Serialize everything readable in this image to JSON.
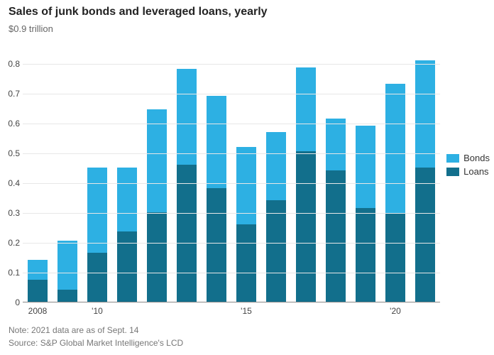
{
  "title": "Sales of junk bonds and leveraged loans, yearly",
  "subtitle": "$0.9 trillion",
  "note": "Note: 2021 data are as of Sept. 14",
  "source": "Source: S&P Global Market Intelligence's LCD",
  "legend": {
    "bonds": "Bonds",
    "loans": "Loans"
  },
  "chart": {
    "type": "stacked-bar",
    "background_color": "#ffffff",
    "grid_color": "#e7e7e7",
    "axis_color": "#888888",
    "text_color": "#444444",
    "title_fontsize": 16,
    "label_fontsize": 12,
    "ylim": [
      0,
      0.9
    ],
    "ytick_step": 0.1,
    "ytick_labels": [
      "0",
      "0.1",
      "0.2",
      "0.3",
      "0.4",
      "0.5",
      "0.6",
      "0.7",
      "0.8"
    ],
    "series_colors": {
      "loans": "#126f8c",
      "bonds": "#2db0e3"
    },
    "bar_width_ratio": 0.66,
    "years": [
      2008,
      2009,
      2010,
      2011,
      2012,
      2013,
      2014,
      2015,
      2016,
      2017,
      2018,
      2019,
      2020,
      2021
    ],
    "loans": [
      0.075,
      0.04,
      0.165,
      0.235,
      0.3,
      0.46,
      0.38,
      0.26,
      0.34,
      0.505,
      0.44,
      0.315,
      0.295,
      0.45
    ],
    "bonds": [
      0.065,
      0.165,
      0.285,
      0.215,
      0.345,
      0.32,
      0.31,
      0.26,
      0.23,
      0.28,
      0.175,
      0.275,
      0.435,
      0.36
    ],
    "xtick_labels": {
      "2008": "2008",
      "2010": "'10",
      "2015": "'15",
      "2020": "'20"
    }
  }
}
